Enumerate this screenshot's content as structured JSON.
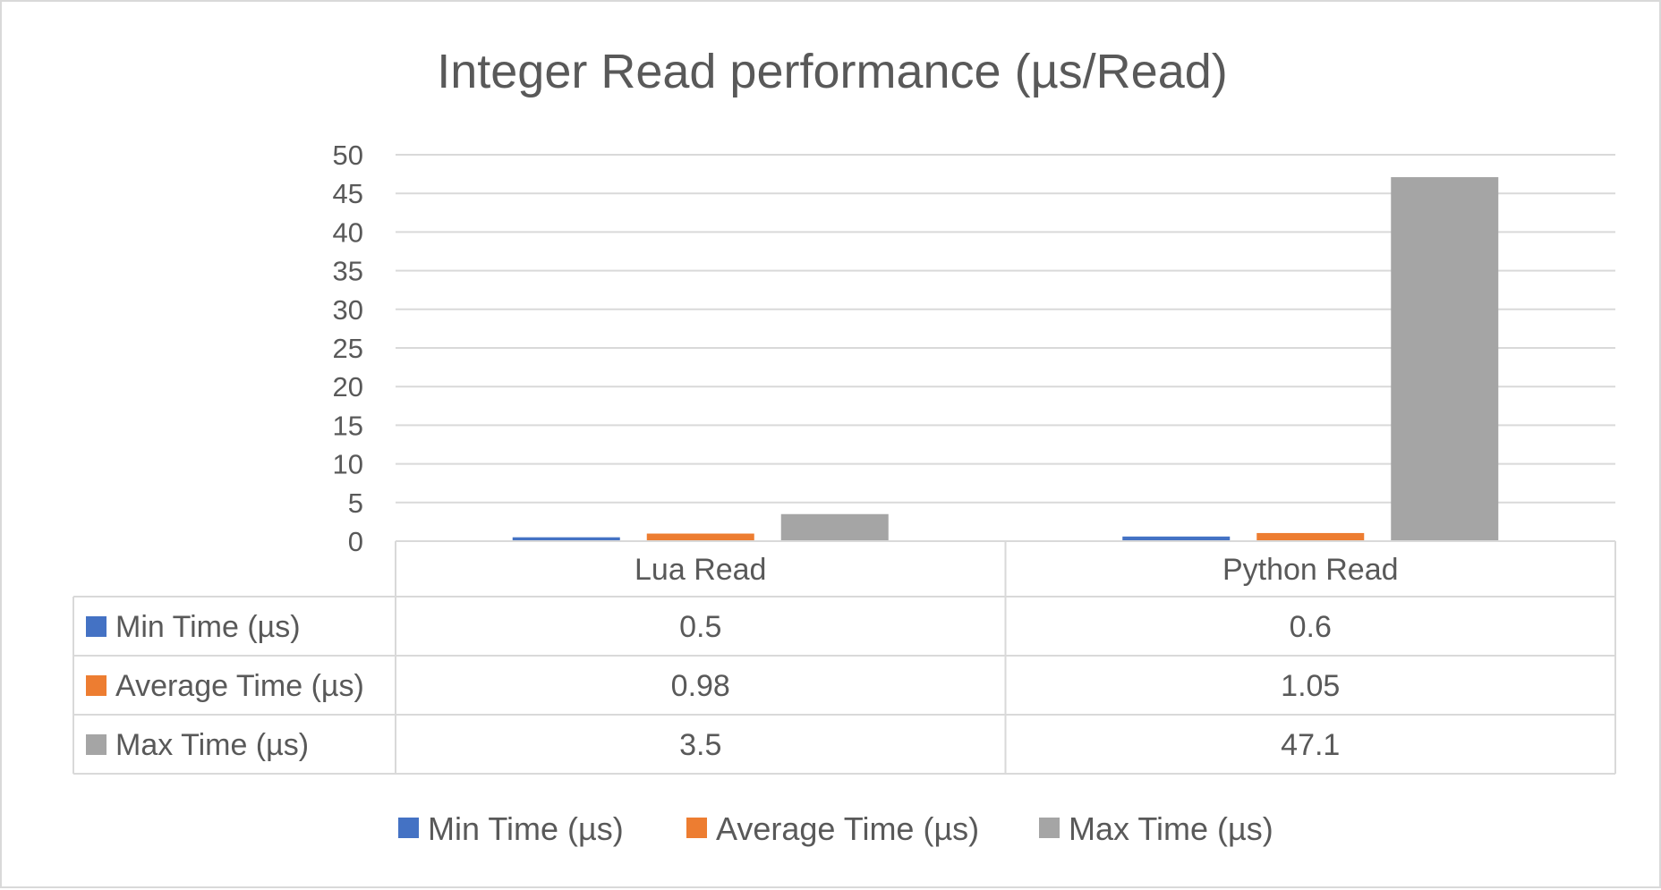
{
  "chart_data": {
    "type": "bar",
    "title": "Integer Read performance (µs/Read)",
    "xlabel": "",
    "ylabel": "",
    "categories": [
      "Lua Read",
      "Python Read"
    ],
    "series": [
      {
        "name": "Min Time (µs)",
        "values": [
          0.5,
          0.6
        ],
        "color": "#4472c4",
        "labels": [
          "0.5",
          "0.6"
        ]
      },
      {
        "name": "Average Time (µs)",
        "values": [
          0.98,
          1.05
        ],
        "color": "#ed7d31",
        "labels": [
          "0.98",
          "1.05"
        ]
      },
      {
        "name": "Max Time (µs)",
        "values": [
          3.5,
          47.1
        ],
        "color": "#a5a5a5",
        "labels": [
          "3.5",
          "47.1"
        ]
      }
    ],
    "ylim": [
      0,
      50
    ],
    "yticks": [
      "0",
      "5",
      "10",
      "15",
      "20",
      "25",
      "30",
      "35",
      "40",
      "45",
      "50"
    ],
    "grid": true,
    "data_table": true,
    "legend_position": "bottom"
  }
}
